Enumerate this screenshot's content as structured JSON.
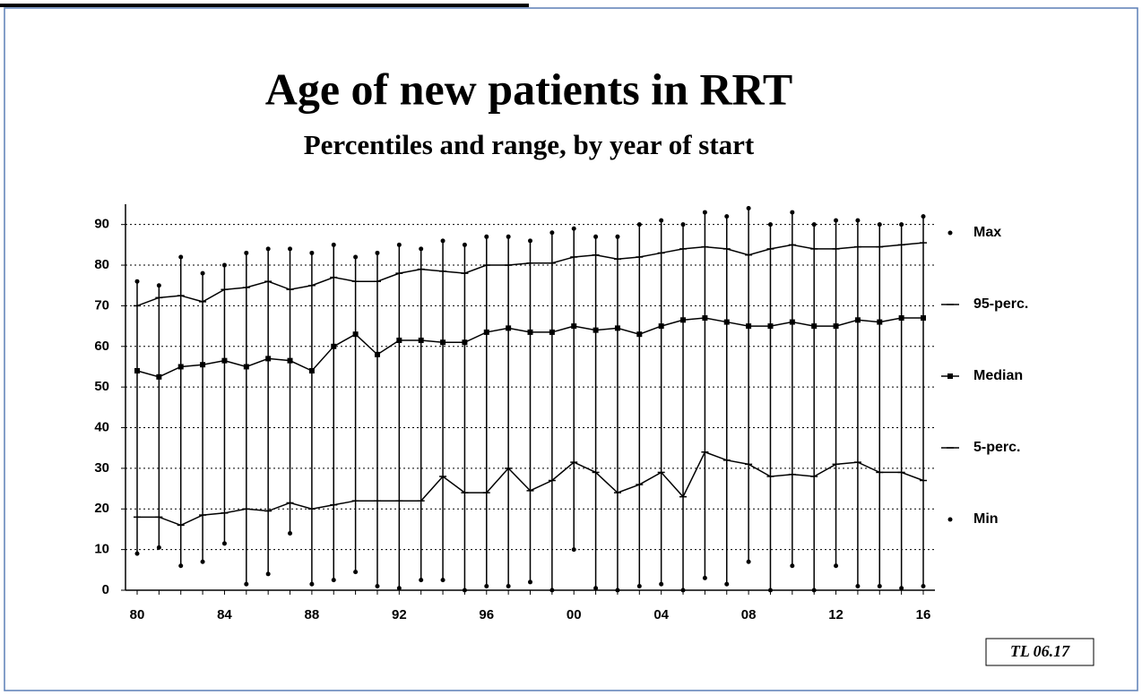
{
  "chart_data": {
    "type": "range-line",
    "title": "Age of new patients in RRT",
    "subtitle": "Percentiles and range,   by year of start",
    "footnote": "TL 06.17",
    "categories": [
      "80",
      null,
      null,
      null,
      "84",
      null,
      null,
      null,
      "88",
      null,
      null,
      null,
      "92",
      null,
      null,
      null,
      "96",
      null,
      null,
      null,
      "00",
      null,
      null,
      null,
      "04",
      null,
      null,
      null,
      "08",
      null,
      null,
      null,
      "12",
      null,
      null,
      null,
      "16"
    ],
    "ylim": [
      0,
      95
    ],
    "yticks": [
      0,
      10,
      20,
      30,
      40,
      50,
      60,
      70,
      80,
      90
    ],
    "grid": true,
    "legend": "right",
    "series": [
      {
        "name": "Max",
        "color": "#000000",
        "marker": "dot",
        "line": false,
        "values": [
          76,
          75,
          82,
          78,
          80,
          83,
          84,
          84,
          83,
          85,
          82,
          83,
          85,
          84,
          86,
          85,
          87,
          87,
          86,
          88,
          89,
          87,
          87,
          90,
          91,
          90,
          93,
          92,
          94,
          90,
          93,
          90,
          91,
          91,
          90,
          90,
          92
        ]
      },
      {
        "name": "95-perc.",
        "color": "#000000",
        "marker": "tick",
        "line": true,
        "values": [
          70,
          72,
          72.5,
          71,
          74,
          74.5,
          76,
          74,
          75,
          77,
          76,
          76,
          78,
          79,
          78.5,
          78,
          80,
          80,
          80.5,
          80.5,
          82,
          82.5,
          81.5,
          82,
          83,
          84,
          84.5,
          84,
          82.5,
          84,
          85,
          84,
          84,
          84.5,
          84.5,
          85,
          85.5
        ]
      },
      {
        "name": "Median",
        "color": "#000000",
        "marker": "square",
        "line": true,
        "values": [
          54,
          52.5,
          55,
          55.5,
          56.5,
          55,
          57,
          56.5,
          54,
          60,
          63,
          58,
          61.5,
          61.5,
          61,
          61,
          63.5,
          64.5,
          63.5,
          63.5,
          65,
          64,
          64.5,
          63,
          65,
          66.5,
          67,
          66,
          65,
          65,
          66,
          65,
          65,
          66.5,
          66,
          67,
          67
        ]
      },
      {
        "name": "5-perc.",
        "color": "#000000",
        "marker": "tick",
        "line": true,
        "values": [
          18,
          18,
          16,
          18.5,
          19,
          20,
          19.5,
          21.5,
          20,
          21,
          22,
          22,
          22,
          22,
          28,
          24,
          24,
          30,
          24.5,
          27,
          31.5,
          29,
          24,
          26,
          29,
          23,
          34,
          32,
          31,
          28,
          28.5,
          28,
          31,
          31.5,
          29,
          29,
          27
        ]
      },
      {
        "name": "Min",
        "color": "#000000",
        "marker": "dot",
        "line": false,
        "values": [
          9,
          10.5,
          6,
          7,
          11.5,
          1.5,
          4,
          14,
          1.5,
          2.5,
          4.5,
          1,
          0.5,
          2.5,
          2.5,
          0,
          1,
          1,
          2,
          0,
          10,
          0.5,
          0,
          1,
          1.5,
          0,
          3,
          1.5,
          7,
          0,
          6,
          0,
          6,
          1,
          1,
          0.5,
          1
        ]
      }
    ]
  }
}
